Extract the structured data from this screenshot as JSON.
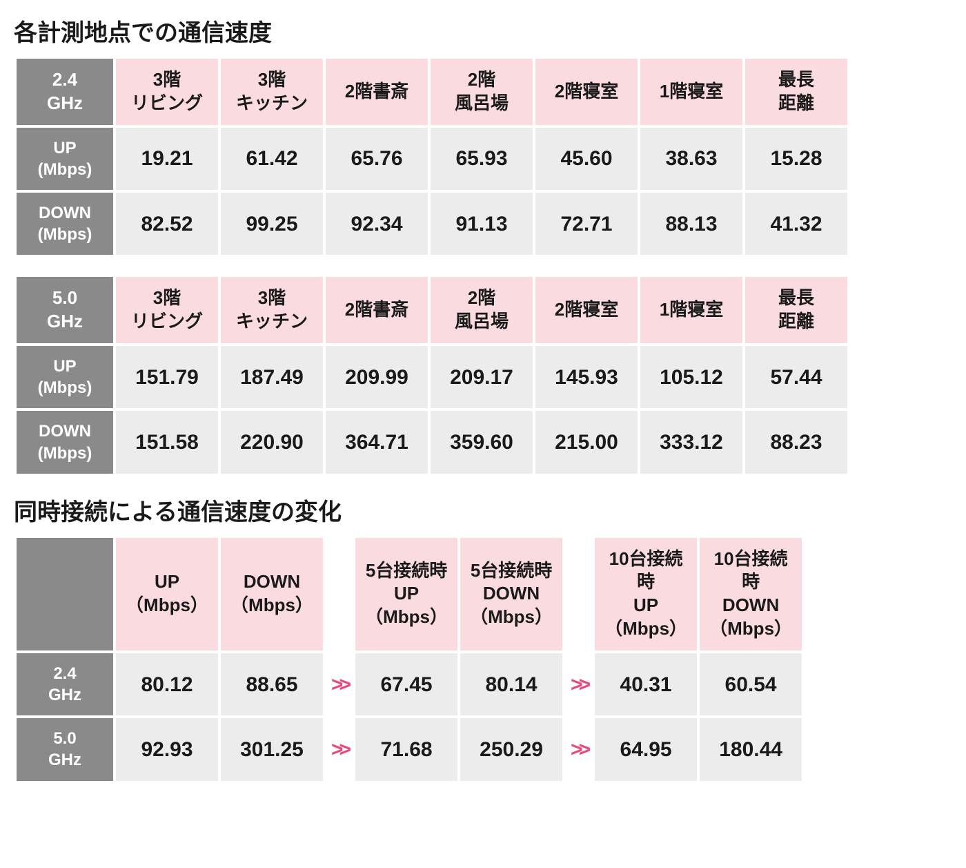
{
  "section1": {
    "title": "各計測地点での通信速度",
    "locations": [
      "3階\nリビング",
      "3階\nキッチン",
      "2階書斎",
      "2階\n風呂場",
      "2階寝室",
      "1階寝室",
      "最長\n距離"
    ],
    "row_labels": {
      "up": "UP\n(Mbps)",
      "down": "DOWN\n(Mbps)"
    },
    "tables": [
      {
        "band": "2.4\nGHz",
        "up": [
          "19.21",
          "61.42",
          "65.76",
          "65.93",
          "45.60",
          "38.63",
          "15.28"
        ],
        "down": [
          "82.52",
          "99.25",
          "92.34",
          "91.13",
          "72.71",
          "88.13",
          "41.32"
        ]
      },
      {
        "band": "5.0\nGHz",
        "up": [
          "151.79",
          "187.49",
          "209.99",
          "209.17",
          "145.93",
          "105.12",
          "57.44"
        ],
        "down": [
          "151.58",
          "220.90",
          "364.71",
          "359.60",
          "215.00",
          "333.12",
          "88.23"
        ]
      }
    ]
  },
  "section2": {
    "title": "同時接続による通信速度の変化",
    "headers": [
      "UP\n（Mbps）",
      "DOWN\n（Mbps）",
      "5台接続時\nUP\n（Mbps）",
      "5台接続時\nDOWN\n（Mbps）",
      "10台接続時\nUP\n（Mbps）",
      "10台接続時\nDOWN\n（Mbps）"
    ],
    "arrow": ">>",
    "rows": [
      {
        "band": "2.4\nGHz",
        "vals": [
          "80.12",
          "88.65",
          "67.45",
          "80.14",
          "40.31",
          "60.54"
        ]
      },
      {
        "band": "5.0\nGHz",
        "vals": [
          "92.93",
          "301.25",
          "71.68",
          "250.29",
          "64.95",
          "180.44"
        ]
      }
    ]
  },
  "colors": {
    "gray_hdr": "#8a8a8a",
    "pink_hdr": "#fadce0",
    "cell_bg": "#ececec",
    "arrow": "#e84a7a",
    "text": "#1a1a1a",
    "white": "#ffffff"
  }
}
